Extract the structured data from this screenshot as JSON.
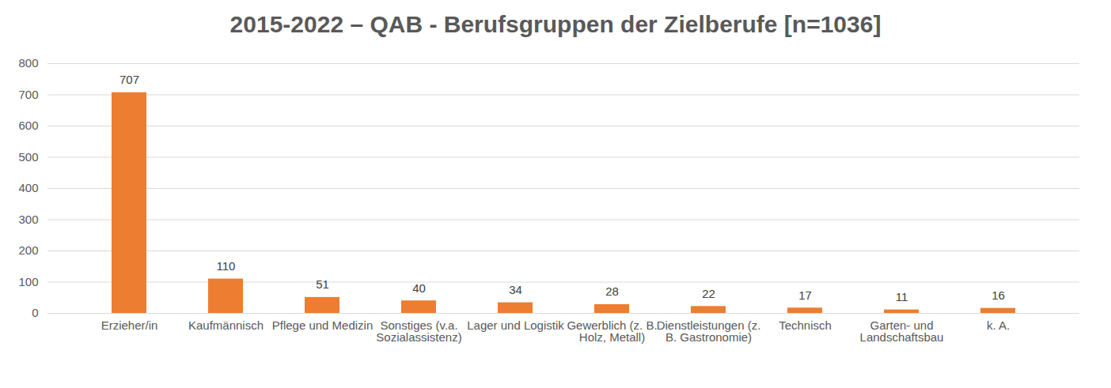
{
  "chart_data": {
    "type": "bar",
    "title": "2015-2022 – QAB - Berufsgruppen der Zielberufe [n=1036]",
    "categories": [
      "Erzieher/in",
      "Kaufmännisch",
      "Pflege und Medizin",
      "Sonstiges (v.a. Sozialassistenz)",
      "Lager und Logistik",
      "Gewerblich (z. B. Holz, Metall)",
      "Dienstleistungen (z. B. Gastronomie)",
      "Technisch",
      "Garten- und Landschaftsbau",
      "k. A."
    ],
    "values": [
      707,
      110,
      51,
      40,
      34,
      28,
      22,
      17,
      11,
      16
    ],
    "color": "#ed7d31",
    "ylim": [
      0,
      800
    ],
    "yticks": [
      0,
      100,
      200,
      300,
      400,
      500,
      600,
      700,
      800
    ],
    "grid": true,
    "data_labels": true
  }
}
